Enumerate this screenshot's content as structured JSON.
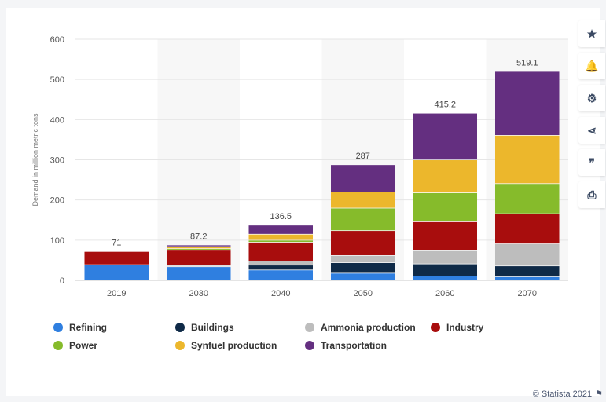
{
  "chart_data": {
    "type": "bar",
    "stacked": true,
    "ylabel": "Demand in million metric tons",
    "xlabel": "",
    "ylim": [
      0,
      600
    ],
    "yticks": [
      0,
      100,
      200,
      300,
      400,
      500,
      600
    ],
    "grid": true,
    "legend_position": "bottom",
    "categories": [
      "2019",
      "2030",
      "2040",
      "2050",
      "2060",
      "2070"
    ],
    "totals": [
      "71",
      "87.2",
      "136.5",
      "287",
      "415.2",
      "519.1"
    ],
    "series": [
      {
        "name": "Refining",
        "color": "#2f7fe0",
        "values": [
          38,
          33,
          25,
          17,
          10,
          8
        ]
      },
      {
        "name": "Buildings",
        "color": "#0f2a47",
        "values": [
          0,
          0,
          12,
          26,
          30,
          27
        ]
      },
      {
        "name": "Ammonia production",
        "color": "#bdbdbd",
        "values": [
          0,
          3,
          10,
          18,
          33,
          55
        ]
      },
      {
        "name": "Industry",
        "color": "#a80d0d",
        "values": [
          33,
          38,
          47,
          62,
          72,
          75
        ]
      },
      {
        "name": "Power",
        "color": "#86bb2b",
        "values": [
          0,
          4,
          5,
          56,
          72,
          75
        ]
      },
      {
        "name": "Synfuel production",
        "color": "#ecb72c",
        "values": [
          0,
          5,
          15,
          40,
          82,
          120
        ]
      },
      {
        "name": "Transportation",
        "color": "#642f80",
        "values": [
          0,
          4.2,
          22.5,
          68,
          116.2,
          159.1
        ]
      }
    ]
  },
  "toolbar": {
    "icons": [
      "star-icon",
      "bell-icon",
      "gear-icon",
      "share-icon",
      "quote-icon",
      "print-icon"
    ],
    "glyphs": [
      "★",
      "🔔",
      "⚙",
      "⋖",
      "❞",
      "⎙"
    ]
  },
  "footer": {
    "text": "© Statista 2021"
  }
}
